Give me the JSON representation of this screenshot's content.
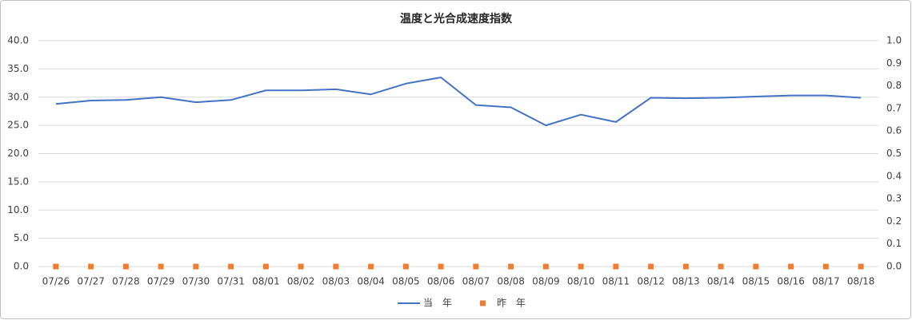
{
  "chart_data": {
    "type": "line",
    "title": "温度と光合成速度指数",
    "categories": [
      "07/26",
      "07/27",
      "07/28",
      "07/29",
      "07/30",
      "07/31",
      "08/01",
      "08/02",
      "08/03",
      "08/04",
      "08/05",
      "08/06",
      "08/07",
      "08/08",
      "08/09",
      "08/10",
      "08/11",
      "08/12",
      "08/13",
      "08/14",
      "08/15",
      "08/16",
      "08/17",
      "08/18"
    ],
    "series": [
      {
        "name": "当　年",
        "color": "#4472c4",
        "values": [
          28.8,
          29.4,
          29.5,
          30.0,
          29.1,
          29.5,
          31.2,
          31.2,
          31.4,
          30.5,
          32.4,
          33.5,
          28.6,
          28.2,
          25.0,
          26.9,
          25.6,
          29.9,
          29.8,
          29.9,
          30.1,
          30.3,
          30.3,
          29.9
        ]
      },
      {
        "name": "昨　年",
        "color": "#ed7d31",
        "axis": "y2",
        "marker": "square",
        "values": [
          0,
          0,
          0,
          0,
          0,
          0,
          0,
          0,
          0,
          0,
          0,
          0,
          0,
          0,
          0,
          0,
          0,
          0,
          0,
          0,
          0,
          0,
          0,
          0
        ]
      }
    ],
    "ylim": [
      0,
      40
    ],
    "yticks": [
      {
        "value": 0,
        "label": "0.0"
      },
      {
        "value": 5,
        "label": "5.0"
      },
      {
        "value": 10,
        "label": "10.0"
      },
      {
        "value": 15,
        "label": "15.0"
      },
      {
        "value": 20,
        "label": "20.0"
      },
      {
        "value": 25,
        "label": "25.0"
      },
      {
        "value": 30,
        "label": "30.0"
      },
      {
        "value": 35,
        "label": "35.0"
      },
      {
        "value": 40,
        "label": "40.0"
      }
    ],
    "y2lim": [
      0,
      1
    ],
    "y2ticks": [
      {
        "value": 0,
        "label": "0.0"
      },
      {
        "value": 0.1,
        "label": "0.1"
      },
      {
        "value": 0.2,
        "label": "0.2"
      },
      {
        "value": 0.3,
        "label": "0.3"
      },
      {
        "value": 0.4,
        "label": "0.4"
      },
      {
        "value": 0.5,
        "label": "0.5"
      },
      {
        "value": 0.6,
        "label": "0.6"
      },
      {
        "value": 0.7,
        "label": "0.7"
      },
      {
        "value": 0.8,
        "label": "0.8"
      },
      {
        "value": 0.9,
        "label": "0.9"
      },
      {
        "value": 1,
        "label": "1.0"
      }
    ],
    "grid": true,
    "legend": "bottom"
  }
}
